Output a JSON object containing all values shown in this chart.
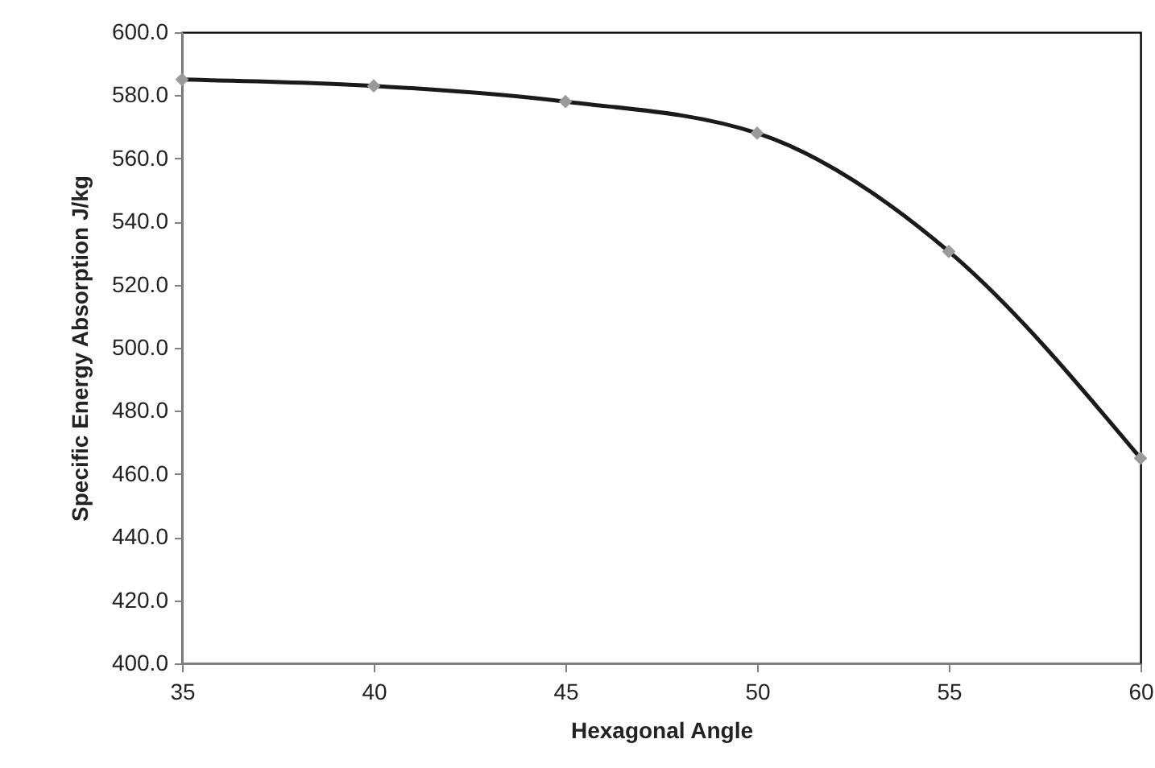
{
  "chart_data": {
    "type": "line",
    "xlabel": "Hexagonal Angle",
    "ylabel": "Specific Energy Absorption J/kg",
    "x": [
      35,
      40,
      45,
      50,
      55,
      60
    ],
    "series": [
      {
        "color": "#1a1a1a",
        "values": [
          585,
          583,
          578,
          568,
          530.5,
          465
        ]
      }
    ],
    "xlim": [
      35,
      60
    ],
    "xticks": [
      35,
      40,
      45,
      50,
      55,
      60
    ],
    "ylim": [
      400,
      600
    ],
    "yticks": [
      {
        "value": 400,
        "label": "400.0"
      },
      {
        "value": 420,
        "label": "420.0"
      },
      {
        "value": 440,
        "label": "440.0"
      },
      {
        "value": 460,
        "label": "460.0"
      },
      {
        "value": 480,
        "label": "480.0"
      },
      {
        "value": 500,
        "label": "500.0"
      },
      {
        "value": 520,
        "label": "520.0"
      },
      {
        "value": 540,
        "label": "540.0"
      },
      {
        "value": 560,
        "label": "560.0"
      },
      {
        "value": 580,
        "label": "580.0"
      },
      {
        "value": 600,
        "label": "600.0"
      }
    ],
    "grid": false,
    "marker": "diamond",
    "line_style": "solid"
  }
}
